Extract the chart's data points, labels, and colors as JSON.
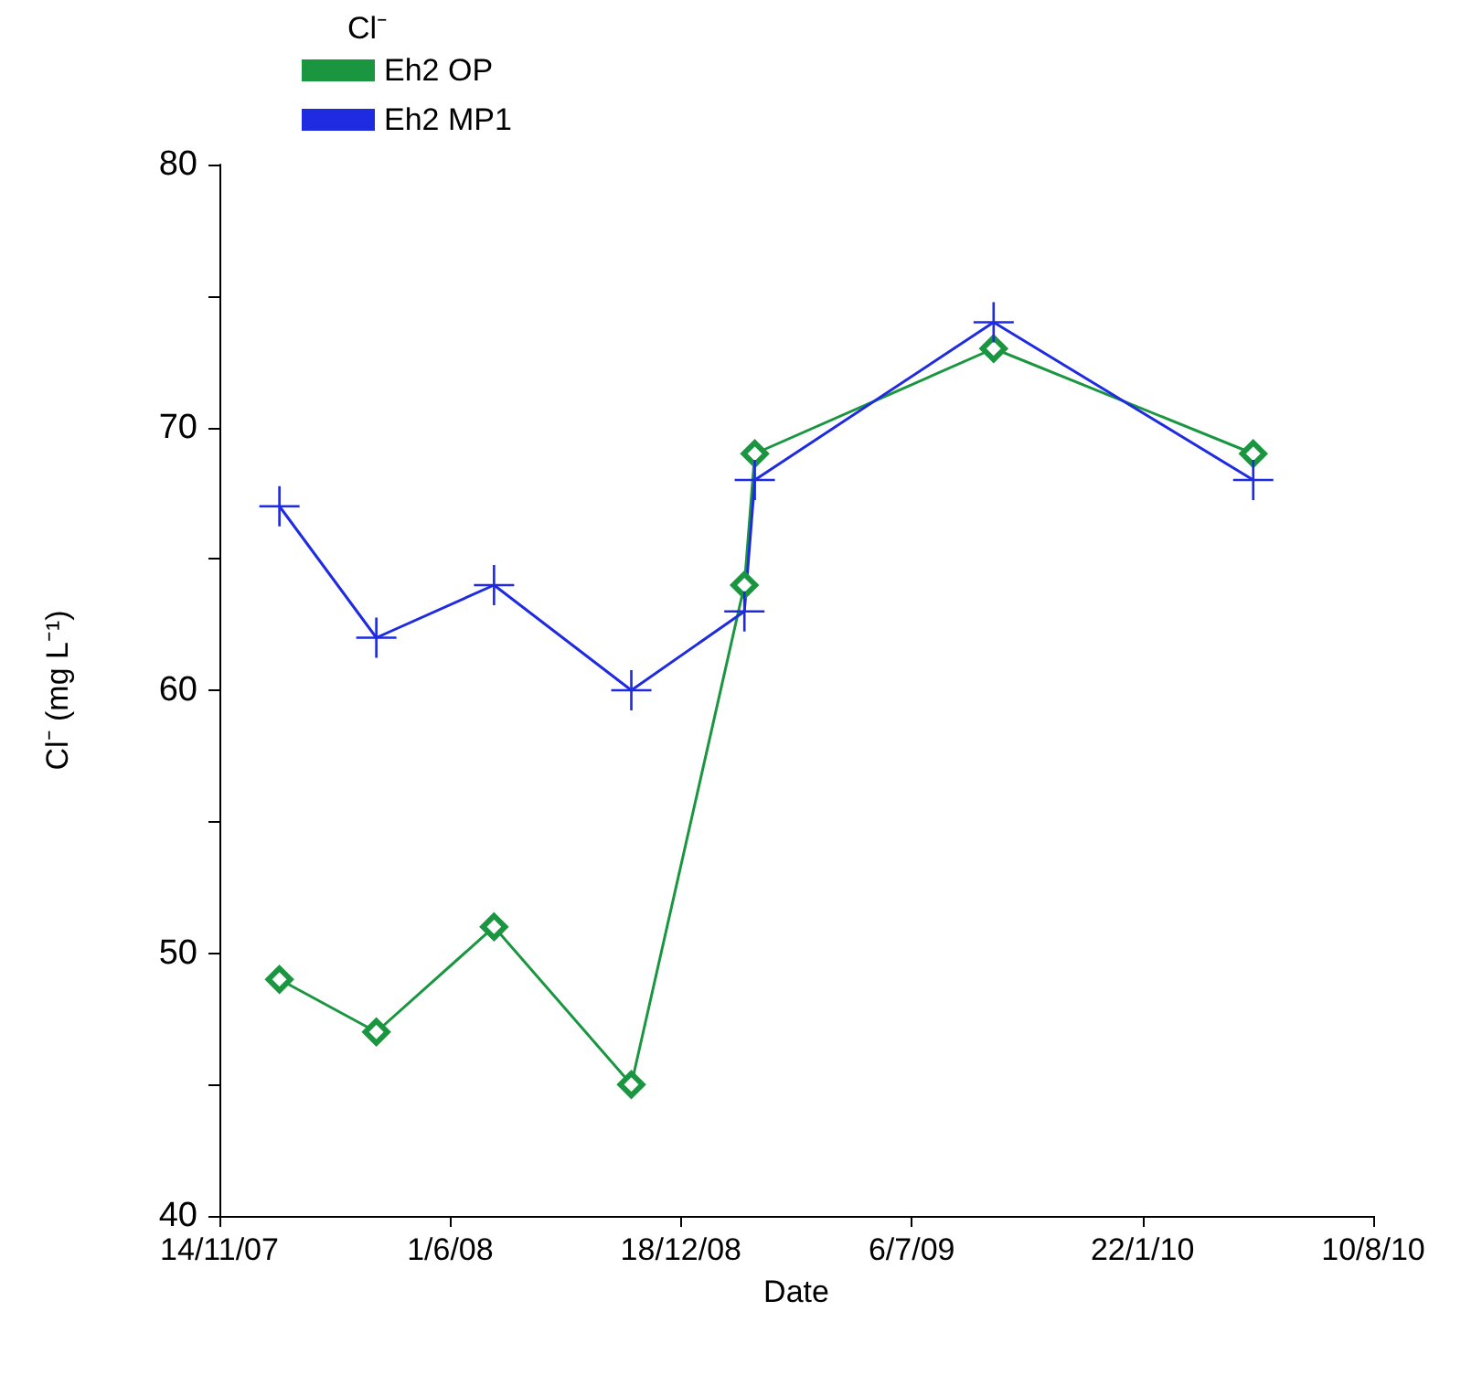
{
  "chart_data": {
    "type": "line",
    "xlabel": "Date",
    "ylabel": "Cl⁻ (mg L⁻¹)",
    "legend_title": "Cl⁻",
    "legend": "top left",
    "grid": false,
    "series": [
      {
        "name": "Eh2 OP",
        "color": "#1a9641",
        "marker": "diamond",
        "x": [
          "2008-01-05",
          "2008-03-29",
          "2008-07-09",
          "2008-11-05",
          "2009-02-11",
          "2009-02-20",
          "2009-09-15",
          "2010-04-28"
        ],
        "values": [
          49,
          47,
          51,
          45,
          64,
          69,
          73,
          69
        ]
      },
      {
        "name": "Eh2 MP1",
        "color": "#1f2be0",
        "marker": "cross",
        "x": [
          "2008-01-05",
          "2008-03-29",
          "2008-07-09",
          "2008-11-05",
          "2009-02-11",
          "2009-02-20",
          "2009-09-15",
          "2010-04-28"
        ],
        "values": [
          67,
          62,
          64,
          60,
          63,
          68,
          74,
          68
        ]
      }
    ],
    "xlim": [
      "2007-11-14",
      "2010-08-10"
    ],
    "xticks": [
      {
        "value": "2007-11-14",
        "label": "14/11/07"
      },
      {
        "value": "2008-06-01",
        "label": "1/6/08"
      },
      {
        "value": "2008-12-18",
        "label": "18/12/08"
      },
      {
        "value": "2009-07-06",
        "label": "6/7/09"
      },
      {
        "value": "2010-01-22",
        "label": "22/1/10"
      },
      {
        "value": "2010-08-10",
        "label": "10/8/10"
      }
    ],
    "ylim": [
      40,
      80
    ],
    "yticks": [
      40,
      {
        "value": 45,
        "label": null
      },
      50,
      {
        "value": 55,
        "label": null
      },
      60,
      {
        "value": 65,
        "label": null
      },
      70,
      {
        "value": 75,
        "label": null
      },
      80
    ]
  }
}
